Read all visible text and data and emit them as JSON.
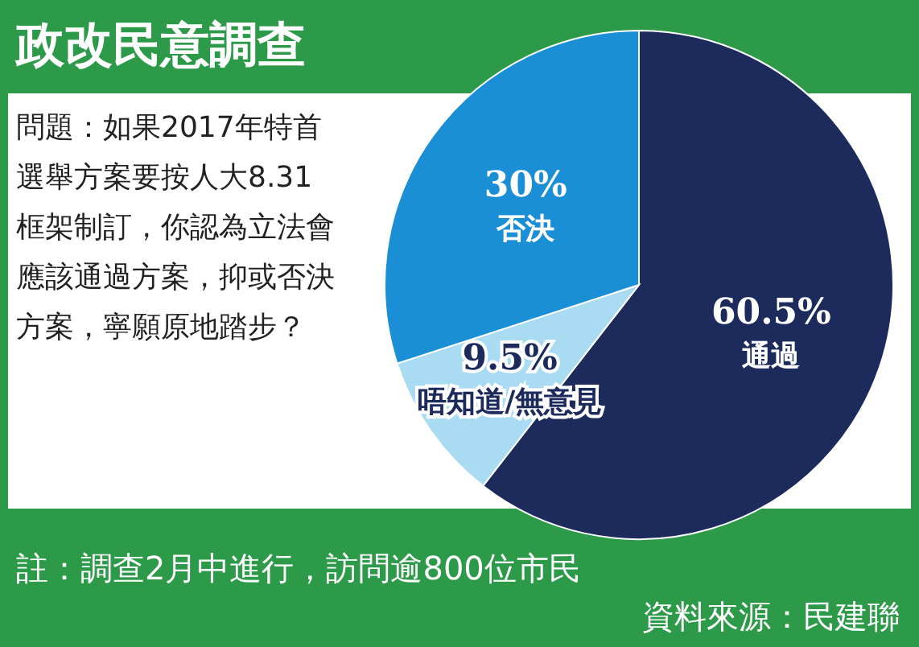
{
  "chart_data": {
    "type": "pie",
    "title": "政改民意調查",
    "categories": [
      "通過",
      "唔知道/無意見",
      "否決"
    ],
    "values": [
      60.5,
      9.5,
      30
    ],
    "value_labels": [
      "60.5%",
      "9.5%",
      "30%"
    ],
    "colors": [
      "#1c2a5c",
      "#a9dcf2",
      "#1b8fd6"
    ],
    "annotations": [
      "問題：如果2017年特首選舉方案要按人大8.31框架制訂，你認為立法會應該通過方案，抑或否決方案，寧願原地踏步？",
      "註：調查2月中進行，訪問逾800位市民",
      "資料來源：民建聯"
    ]
  }
}
